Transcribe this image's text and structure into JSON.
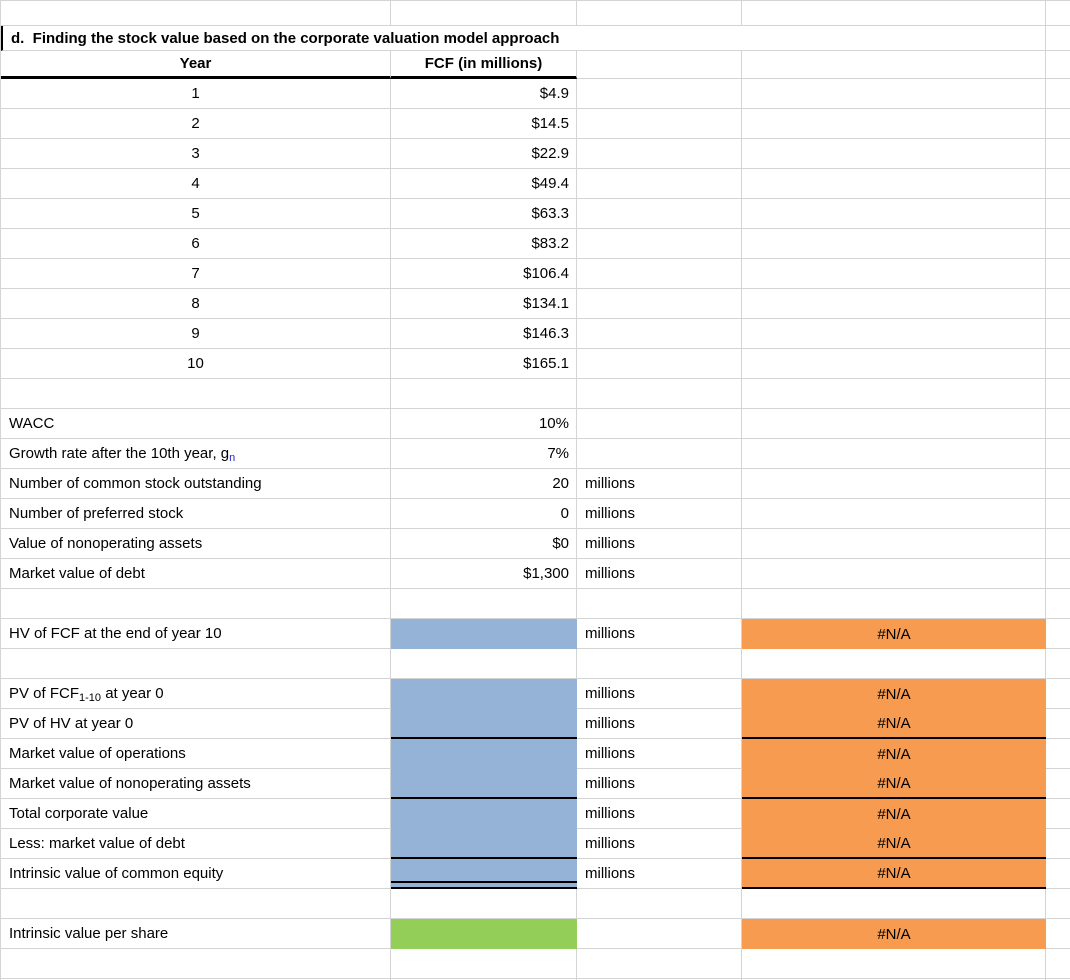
{
  "palette": {
    "input_fill": "#95B3D7",
    "result_fill": "#92CE58",
    "error_fill": "#F79B50",
    "gridline": "#D4D4D4",
    "subscript_blue": "#2323CB"
  },
  "sheet": {
    "title": "d.  Finding the stock value based on the corporate valuation model approach",
    "fcf_table": {
      "year_header": "Year",
      "fcf_header": "FCF (in millions)",
      "rows": [
        {
          "year": "1",
          "fcf": "$4.9"
        },
        {
          "year": "2",
          "fcf": "$14.5"
        },
        {
          "year": "3",
          "fcf": "$22.9"
        },
        {
          "year": "4",
          "fcf": "$49.4"
        },
        {
          "year": "5",
          "fcf": "$63.3"
        },
        {
          "year": "6",
          "fcf": "$83.2"
        },
        {
          "year": "7",
          "fcf": "$106.4"
        },
        {
          "year": "8",
          "fcf": "$134.1"
        },
        {
          "year": "9",
          "fcf": "$146.3"
        },
        {
          "year": "10",
          "fcf": "$165.1"
        }
      ]
    },
    "assumptions": [
      {
        "label": [
          {
            "t": "WACC"
          }
        ],
        "value": "10%",
        "unit": ""
      },
      {
        "label": [
          {
            "t": "Growth rate after the 10th year, g"
          },
          {
            "t": "n",
            "sub": true,
            "blue": true
          }
        ],
        "value": "7%",
        "unit": ""
      },
      {
        "label": [
          {
            "t": "Number of common stock outstanding"
          }
        ],
        "value": "20",
        "unit": "millions"
      },
      {
        "label": [
          {
            "t": "Number of preferred stock"
          }
        ],
        "value": "0",
        "unit": "millions"
      },
      {
        "label": [
          {
            "t": "Value of nonoperating assets"
          }
        ],
        "value": "$0",
        "unit": "millions"
      },
      {
        "label": [
          {
            "t": "Market value of debt"
          }
        ],
        "value": "$1,300",
        "unit": "millions"
      }
    ],
    "valuation": [
      {
        "label": [
          {
            "t": "HV of FCF at the end of year 10"
          }
        ],
        "unit": "millions",
        "result": "#N/A",
        "border": ""
      },
      {
        "label": [
          {
            "t": "PV of FCF"
          },
          {
            "t": "1-10",
            "sub": true
          },
          {
            "t": " at year 0"
          }
        ],
        "unit": "millions",
        "result": "#N/A",
        "border": ""
      },
      {
        "label": [
          {
            "t": "PV of HV at year 0"
          }
        ],
        "unit": "millions",
        "result": "#N/A",
        "border": "single"
      },
      {
        "label": [
          {
            "t": "Market value of operations"
          }
        ],
        "unit": "millions",
        "result": "#N/A",
        "border": ""
      },
      {
        "label": [
          {
            "t": "Market value of nonoperating assets"
          }
        ],
        "unit": "millions",
        "result": "#N/A",
        "border": "single"
      },
      {
        "label": [
          {
            "t": "Total corporate value"
          }
        ],
        "unit": "millions",
        "result": "#N/A",
        "border": ""
      },
      {
        "label": [
          {
            "t": "Less: market value of debt"
          }
        ],
        "unit": "millions",
        "result": "#N/A",
        "border": "single"
      },
      {
        "label": [
          {
            "t": "Intrinsic value of common equity"
          }
        ],
        "unit": "millions",
        "result": "#N/A",
        "border": "double"
      }
    ],
    "per_share": {
      "label": [
        {
          "t": "Intrinsic value per share"
        }
      ],
      "result": "#N/A"
    }
  }
}
